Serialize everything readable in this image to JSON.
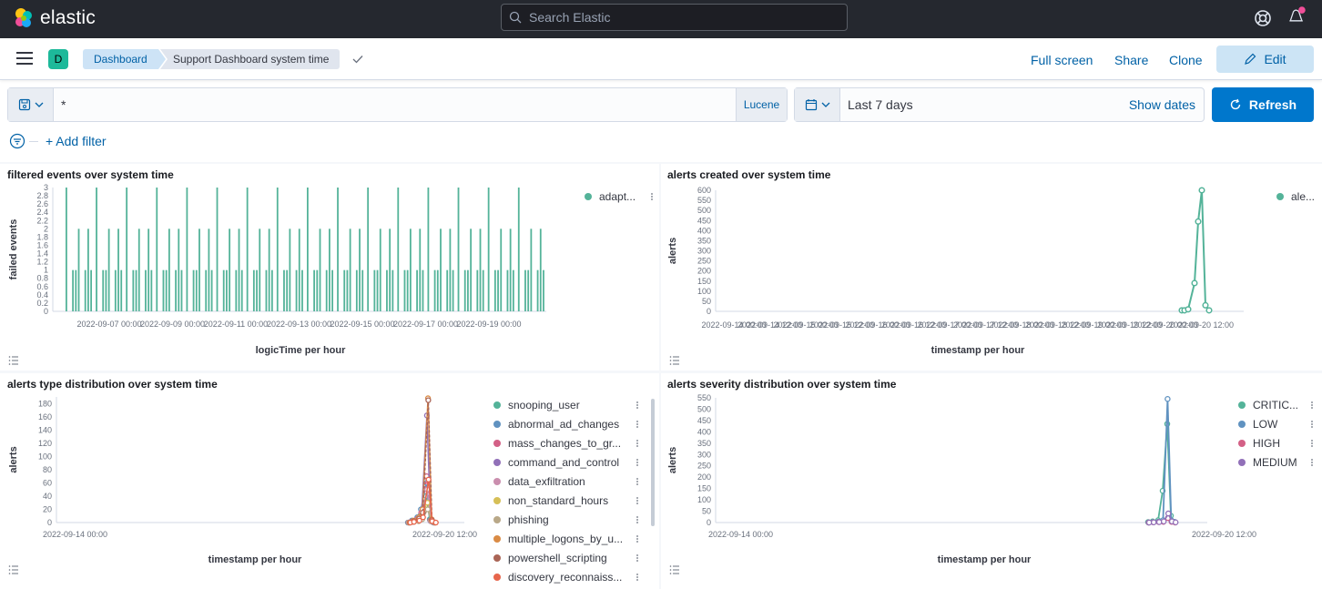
{
  "header": {
    "logo_text": "elastic",
    "search_placeholder": "Search Elastic"
  },
  "nav": {
    "space_badge": "D",
    "breadcrumbs": [
      "Dashboard",
      "Support Dashboard system time"
    ],
    "actions": {
      "full_screen": "Full screen",
      "share": "Share",
      "clone": "Clone",
      "edit": "Edit"
    }
  },
  "query": {
    "value": "*",
    "language": "Lucene",
    "time_range": "Last 7 days",
    "show_dates": "Show dates",
    "refresh": "Refresh",
    "add_filter": "+ Add filter"
  },
  "colors": {
    "accent": "#0077cc",
    "topbar": "#25282f",
    "series_green": "#54b399",
    "series_blue": "#6092c0",
    "series_pink": "#d36086",
    "series_purple": "#9170b8",
    "series_lightpink": "#ca8eae",
    "series_yellow": "#d6bf57",
    "series_brown": "#b9a888",
    "series_orange": "#da8b45",
    "series_rose": "#aa6556",
    "series_peach": "#e7664c"
  },
  "panels": [
    {
      "title": "filtered events over system time",
      "chart_data": {
        "type": "bar",
        "xlabel": "logicTime per hour",
        "ylabel": "failed events",
        "yticks": [
          "0",
          "0.2",
          "0.4",
          "0.6",
          "0.8",
          "1",
          "1.2",
          "1.4",
          "1.6",
          "1.8",
          "2",
          "2.2",
          "2.4",
          "2.6",
          "2.8",
          "3"
        ],
        "xticks": [
          "2022-09-07 00:00",
          "2022-09-09 00:00",
          "2022-09-11 00:00",
          "2022-09-13 00:00",
          "2022-09-15 00:00",
          "2022-09-17 00:00",
          "2022-09-19 00:00"
        ],
        "ylim": [
          0,
          3
        ],
        "legend": [
          "adapt..."
        ],
        "bar_groups": 16,
        "group_pattern": [
          3,
          1,
          1,
          2,
          1,
          2,
          1
        ]
      }
    },
    {
      "title": "alerts created over system time",
      "chart_data": {
        "type": "line",
        "xlabel": "timestamp per hour",
        "ylabel": "alerts",
        "yticks": [
          "0",
          "50",
          "100",
          "150",
          "200",
          "250",
          "300",
          "350",
          "400",
          "450",
          "500",
          "550",
          "600"
        ],
        "ylim": [
          0,
          600
        ],
        "xticks": [
          "2022-09-14 00:00",
          "2022-09-14 12:00",
          "2022-09-15 00:00",
          "2022-09-15 12:00",
          "2022-09-16 00:00",
          "2022-09-16 12:00",
          "2022-09-17 00:00",
          "2022-09-17 12:00",
          "2022-09-18 00:00",
          "2022-09-18 12:00",
          "2022-09-19 00:00",
          "2022-09-19 12:00",
          "2022-09-20 00:00",
          "2022-09-20 12:00"
        ],
        "legend": [
          "ale..."
        ],
        "series": [
          {
            "name": "ale...",
            "values": [
              5,
              5,
              10,
              140,
              445,
              600,
              30,
              5
            ]
          }
        ]
      }
    },
    {
      "title": "alerts type distribution over system time",
      "chart_data": {
        "type": "line",
        "xlabel": "timestamp per hour",
        "ylabel": "alerts",
        "yticks": [
          "0",
          "20",
          "40",
          "60",
          "80",
          "100",
          "120",
          "140",
          "160",
          "180"
        ],
        "ylim": [
          0,
          190
        ],
        "xticks": [
          "2022-09-14 00:00",
          "2022-09-20 12:00"
        ],
        "legend": [
          "snooping_user",
          "abnormal_ad_changes",
          "mass_changes_to_gr...",
          "command_and_control",
          "data_exfiltration",
          "non_standard_hours",
          "phishing",
          "multiple_logons_by_u...",
          "powershell_scripting",
          "discovery_reconnaiss..."
        ],
        "series": [
          {
            "name": "snooping_user",
            "values": [
              0,
              2,
              5,
              10,
              40,
              5,
              0
            ]
          },
          {
            "name": "abnormal_ad_changes",
            "values": [
              0,
              3,
              8,
              20,
              60,
              4,
              0
            ]
          },
          {
            "name": "mass_changes_to_gr...",
            "values": [
              0,
              2,
              6,
              15,
              70,
              3,
              0
            ]
          },
          {
            "name": "command_and_control",
            "values": [
              0,
              1,
              4,
              10,
              162,
              2,
              0
            ]
          },
          {
            "name": "data_exfiltration",
            "values": [
              0,
              1,
              3,
              8,
              50,
              2,
              0
            ]
          },
          {
            "name": "non_standard_hours",
            "values": [
              0,
              2,
              5,
              12,
              30,
              3,
              0
            ]
          },
          {
            "name": "phishing",
            "values": [
              0,
              1,
              2,
              5,
              20,
              2,
              0
            ]
          },
          {
            "name": "multiple_logons_by_u...",
            "values": [
              0,
              3,
              8,
              20,
              188,
              5,
              0
            ]
          },
          {
            "name": "powershell_scripting",
            "values": [
              0,
              2,
              6,
              15,
              185,
              4,
              0
            ]
          },
          {
            "name": "discovery_reconnaiss...",
            "values": [
              0,
              1,
              3,
              8,
              65,
              2,
              0
            ]
          }
        ]
      }
    },
    {
      "title": "alerts severity distribution over system time",
      "chart_data": {
        "type": "line",
        "xlabel": "timestamp per hour",
        "ylabel": "alerts",
        "yticks": [
          "0",
          "50",
          "100",
          "150",
          "200",
          "250",
          "300",
          "350",
          "400",
          "450",
          "500",
          "550"
        ],
        "ylim": [
          0,
          550
        ],
        "xticks": [
          "2022-09-14 00:00",
          "2022-09-20 12:00"
        ],
        "legend": [
          "CRITIC...",
          "LOW",
          "HIGH",
          "MEDIUM"
        ],
        "series": [
          {
            "name": "CRITIC...",
            "values": [
              2,
              5,
              10,
              140,
              435,
              30,
              3
            ]
          },
          {
            "name": "LOW",
            "values": [
              0,
              2,
              4,
              10,
              545,
              10,
              2
            ]
          },
          {
            "name": "HIGH",
            "values": [
              0,
              1,
              2,
              3,
              20,
              3,
              0
            ]
          },
          {
            "name": "MEDIUM",
            "values": [
              0,
              1,
              2,
              5,
              40,
              5,
              1
            ]
          }
        ]
      }
    }
  ]
}
